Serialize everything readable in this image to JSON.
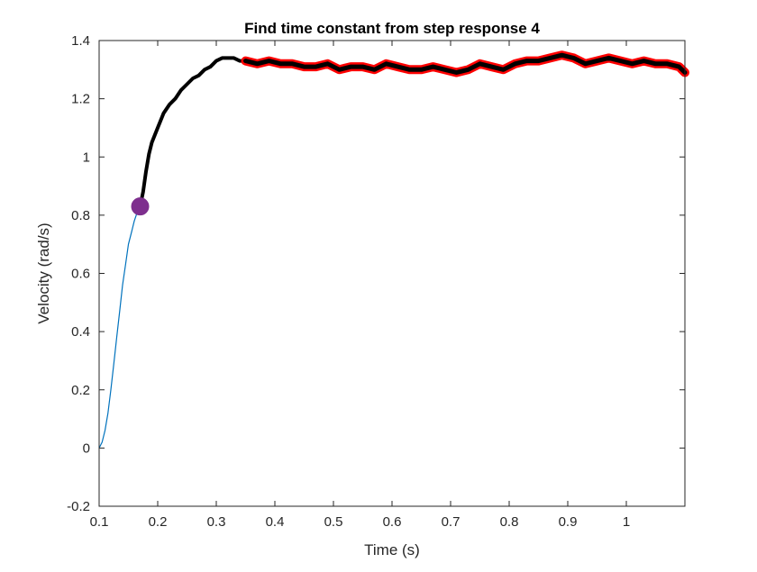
{
  "chart_data": {
    "type": "line",
    "title": "Find time constant from step response 4",
    "xlabel": "Time (s)",
    "ylabel": "Velocity (rad/s)",
    "xlim": [
      0.1,
      1.1
    ],
    "ylim": [
      -0.2,
      1.4
    ],
    "xticks": [
      0.1,
      0.2,
      0.3,
      0.4,
      0.5,
      0.6,
      0.7,
      0.8,
      0.9,
      1.0
    ],
    "xtick_labels": [
      "0.1",
      "0.2",
      "0.3",
      "0.4",
      "0.5",
      "0.6",
      "0.7",
      "0.8",
      "0.9",
      "1"
    ],
    "yticks": [
      -0.2,
      0,
      0.2,
      0.4,
      0.6,
      0.8,
      1.0,
      1.2,
      1.4
    ],
    "ytick_labels": [
      "-0.2",
      "0",
      "0.2",
      "0.4",
      "0.6",
      "0.8",
      "1",
      "1.2",
      "1.4"
    ],
    "grid": false,
    "legend": "none",
    "series": [
      {
        "color": "#0072BD",
        "style": "thin-line",
        "x": [
          0.1,
          0.105,
          0.11,
          0.115,
          0.12,
          0.125,
          0.13,
          0.135,
          0.14,
          0.145,
          0.15,
          0.155,
          0.16,
          0.165,
          0.17
        ],
        "y": [
          0.0,
          0.02,
          0.06,
          0.12,
          0.2,
          0.29,
          0.38,
          0.47,
          0.56,
          0.63,
          0.7,
          0.74,
          0.78,
          0.81,
          0.83
        ]
      },
      {
        "color": "#000000",
        "style": "thick-line",
        "x": [
          0.17,
          0.175,
          0.18,
          0.185,
          0.19,
          0.2,
          0.21,
          0.22,
          0.23,
          0.24,
          0.25,
          0.26,
          0.27,
          0.28,
          0.29,
          0.3,
          0.31,
          0.32,
          0.33,
          0.34,
          0.35
        ],
        "y": [
          0.83,
          0.88,
          0.95,
          1.01,
          1.05,
          1.1,
          1.15,
          1.18,
          1.2,
          1.23,
          1.25,
          1.27,
          1.28,
          1.3,
          1.31,
          1.33,
          1.34,
          1.34,
          1.34,
          1.33,
          1.33
        ]
      },
      {
        "color": "#000000",
        "outline_color": "#FF0000",
        "style": "thick-outlined",
        "x": [
          0.35,
          0.37,
          0.39,
          0.41,
          0.43,
          0.45,
          0.47,
          0.49,
          0.51,
          0.53,
          0.55,
          0.57,
          0.59,
          0.61,
          0.63,
          0.65,
          0.67,
          0.69,
          0.71,
          0.73,
          0.75,
          0.77,
          0.79,
          0.81,
          0.83,
          0.85,
          0.87,
          0.89,
          0.91,
          0.93,
          0.95,
          0.97,
          0.99,
          1.01,
          1.03,
          1.05,
          1.07,
          1.09,
          1.1
        ],
        "y": [
          1.33,
          1.32,
          1.33,
          1.32,
          1.32,
          1.31,
          1.31,
          1.32,
          1.3,
          1.31,
          1.31,
          1.3,
          1.32,
          1.31,
          1.3,
          1.3,
          1.31,
          1.3,
          1.29,
          1.3,
          1.32,
          1.31,
          1.3,
          1.32,
          1.33,
          1.33,
          1.34,
          1.35,
          1.34,
          1.32,
          1.33,
          1.34,
          1.33,
          1.32,
          1.33,
          1.32,
          1.32,
          1.31,
          1.29
        ]
      }
    ],
    "marker": {
      "x": 0.17,
      "y": 0.83,
      "color": "#7E2F8E",
      "shape": "filled-circle"
    }
  }
}
